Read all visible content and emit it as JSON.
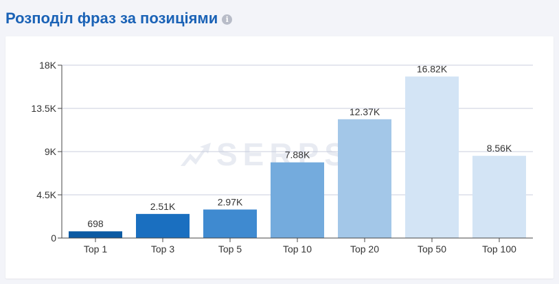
{
  "header": {
    "title": "Розподіл фраз за позиціями",
    "info_icon": "info-icon"
  },
  "watermark": {
    "text": "SERPST"
  },
  "chart_data": {
    "type": "bar",
    "categories": [
      "Top 1",
      "Top 3",
      "Top 5",
      "Top 10",
      "Top 20",
      "Top 50",
      "Top 100"
    ],
    "values": [
      698,
      2510,
      2970,
      7880,
      12370,
      16820,
      8560
    ],
    "data_labels": [
      "698",
      "2.51K",
      "2.97K",
      "7.88K",
      "12.37K",
      "16.82K",
      "8.56K"
    ],
    "bar_colors": [
      "#0b5aa3",
      "#1a6fc0",
      "#3f8ad0",
      "#74abdd",
      "#a3c7e8",
      "#d3e4f5",
      "#d3e4f5"
    ],
    "ylim": [
      0,
      18000
    ],
    "yticks": [
      0,
      4500,
      9000,
      13500,
      18000
    ],
    "ytick_labels": [
      "0",
      "4.5K",
      "9K",
      "13.5K",
      "18K"
    ],
    "grid": true,
    "xlabel": "",
    "ylabel": ""
  }
}
